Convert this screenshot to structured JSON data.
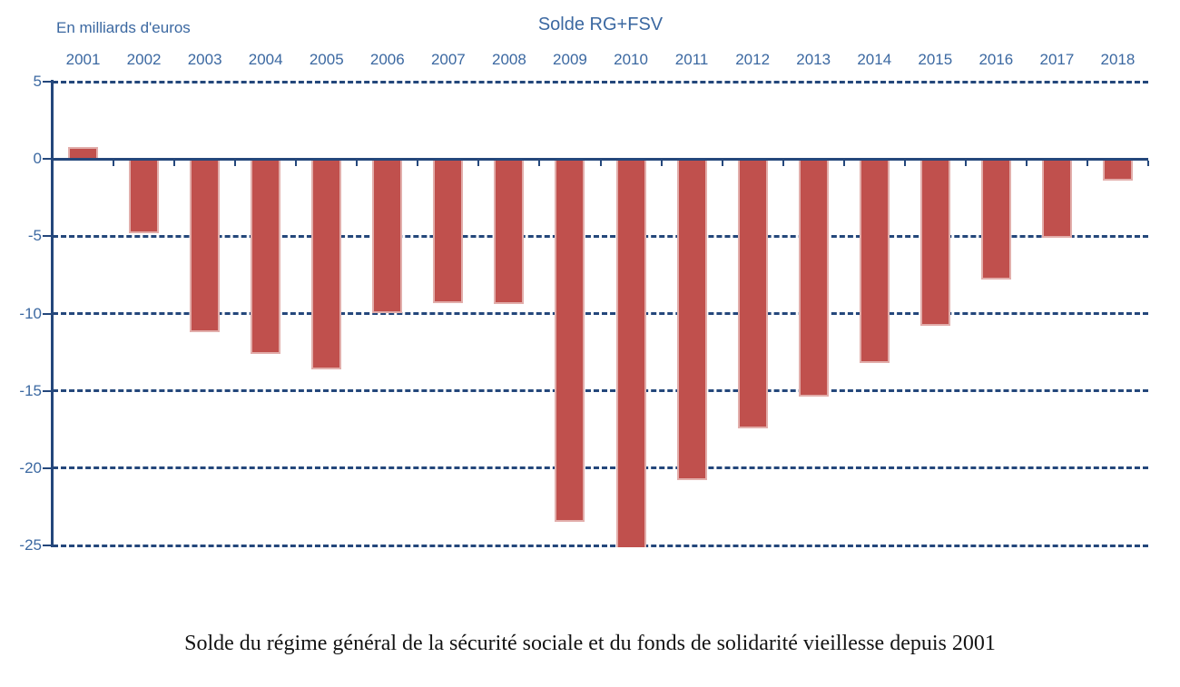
{
  "chart_data": {
    "type": "bar",
    "title": "Solde RG+FSV",
    "unit_label": "En milliards d'euros",
    "caption": "Solde du régime général de la sécurité sociale et du fonds de solidarité vieillesse depuis 2001",
    "categories": [
      "2001",
      "2002",
      "2003",
      "2004",
      "2005",
      "2006",
      "2007",
      "2008",
      "2009",
      "2010",
      "2011",
      "2012",
      "2013",
      "2014",
      "2015",
      "2016",
      "2017",
      "2018"
    ],
    "values": [
      0.8,
      -4.8,
      -11.2,
      -12.6,
      -13.6,
      -10.0,
      -9.3,
      -9.4,
      -23.5,
      -28.0,
      -20.8,
      -17.4,
      -15.4,
      -13.2,
      -10.8,
      -7.8,
      -5.1,
      -1.4
    ],
    "ylim": [
      -25,
      5
    ],
    "ytick_labels": [
      "5",
      "0",
      "-5",
      "-10",
      "-15",
      "-20",
      "-25"
    ],
    "ytick_values": [
      5,
      0,
      -5,
      -10,
      -15,
      -20,
      -25
    ],
    "grid": "horizontal dashed gridlines at each y tick; solid thick line at 0; y-axis line on left; no legend",
    "note": "2010 bar (-28.0) is clipped at the axis minimum of -25",
    "colors": {
      "bar_fill": "#c0504d",
      "bar_edge": "#e2aeab",
      "axis_and_grid": "#24477b",
      "labels_text": "#3b68a1",
      "caption_text": "#141414",
      "background": "#ffffff"
    }
  }
}
